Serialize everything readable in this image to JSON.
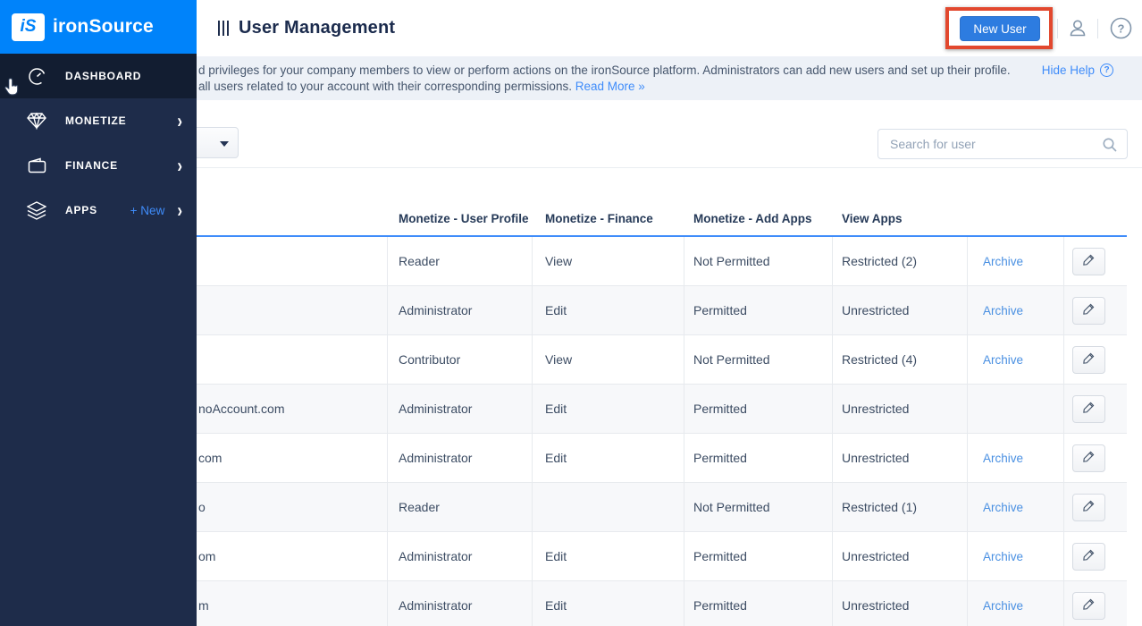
{
  "sidebar": {
    "logo_badge": "iS",
    "logo_text": "ironSource",
    "items": [
      {
        "label": "DASHBOARD",
        "icon": "gauge-icon",
        "extra": "",
        "chevron": ""
      },
      {
        "label": "MONETIZE",
        "icon": "gem-icon",
        "extra": "",
        "chevron": "›"
      },
      {
        "label": "FINANCE",
        "icon": "wallet-icon",
        "extra": "",
        "chevron": "›"
      },
      {
        "label": "APPS",
        "icon": "layers-icon",
        "extra": "+ New",
        "chevron": "›"
      }
    ]
  },
  "header": {
    "title": "User Management",
    "new_user_button": "New User"
  },
  "help_banner": {
    "line1": "d privileges for your company members to view or perform actions on the ironSource platform. Administrators can add new users and set up their profile.",
    "line2": "all users related to your account with their corresponding permissions.",
    "read_more": "Read More »",
    "hide_help": "Hide Help"
  },
  "filters": {
    "search_placeholder": "Search for user"
  },
  "table": {
    "columns": [
      "",
      "Monetize - User Profile",
      "Monetize - Finance",
      "Monetize - Add Apps",
      "View Apps",
      "",
      ""
    ],
    "archive_label": "Archive",
    "rows": [
      {
        "email_fragment": "",
        "user_profile": "Reader",
        "finance": "View",
        "add_apps": "Not Permitted",
        "view_apps": "Restricted (2)",
        "has_archive": true
      },
      {
        "email_fragment": "",
        "user_profile": "Administrator",
        "finance": "Edit",
        "add_apps": "Permitted",
        "view_apps": "Unrestricted",
        "has_archive": true
      },
      {
        "email_fragment": "",
        "user_profile": "Contributor",
        "finance": "View",
        "add_apps": "Not Permitted",
        "view_apps": "Restricted (4)",
        "has_archive": true
      },
      {
        "email_fragment": "noAccount.com",
        "user_profile": "Administrator",
        "finance": "Edit",
        "add_apps": "Permitted",
        "view_apps": "Unrestricted",
        "has_archive": false
      },
      {
        "email_fragment": "com",
        "user_profile": "Administrator",
        "finance": "Edit",
        "add_apps": "Permitted",
        "view_apps": "Unrestricted",
        "has_archive": true
      },
      {
        "email_fragment": "o",
        "user_profile": "Reader",
        "finance": "",
        "add_apps": "Not Permitted",
        "view_apps": "Restricted (1)",
        "has_archive": true
      },
      {
        "email_fragment": "om",
        "user_profile": "Administrator",
        "finance": "Edit",
        "add_apps": "Permitted",
        "view_apps": "Unrestricted",
        "has_archive": true
      },
      {
        "email_fragment": "m",
        "user_profile": "Administrator",
        "finance": "Edit",
        "add_apps": "Permitted",
        "view_apps": "Unrestricted",
        "has_archive": true
      }
    ]
  },
  "icons": {
    "title_bars": "|||",
    "chevron": "›",
    "caret": "▾",
    "help": "?",
    "person": "user-silhouette",
    "pencil": "edit-pencil",
    "magnifier": "search"
  },
  "colors": {
    "brand_blue": "#0083fa",
    "sidebar_navy": "#1e2c4a",
    "sidebar_active": "#121d31",
    "accent_link": "#3f8cfa",
    "archive_link": "#4a90e2",
    "button_blue": "#2d7ce0",
    "annotation_red": "#e2482e",
    "banner_bg": "#edf1f7",
    "header_underline": "#3f8cfa"
  }
}
